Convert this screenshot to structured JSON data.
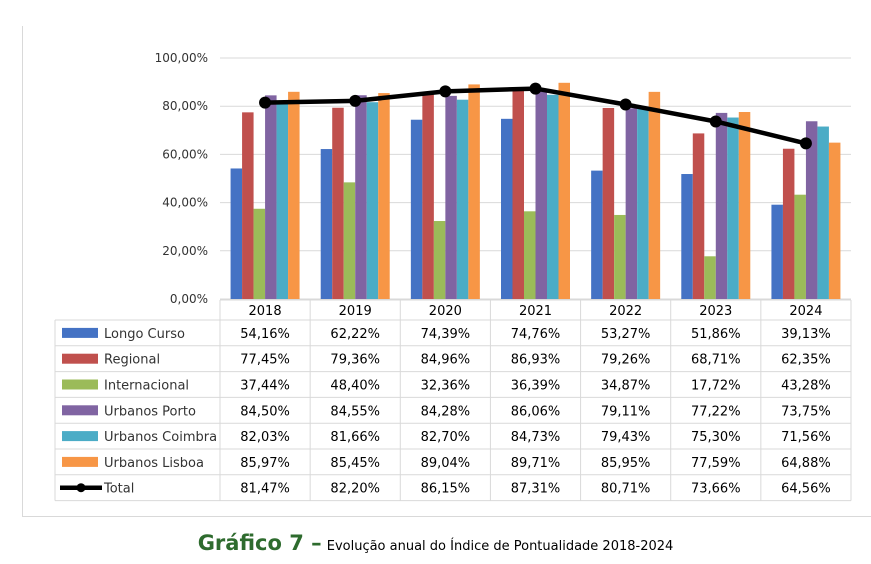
{
  "chart_data": {
    "type": "bar",
    "categories": [
      "2018",
      "2019",
      "2020",
      "2021",
      "2022",
      "2023",
      "2024"
    ],
    "ylim": [
      0,
      100
    ],
    "yticks": [
      "0,00%",
      "20,00%",
      "40,00%",
      "60,00%",
      "80,00%",
      "100,00%"
    ],
    "series": [
      {
        "name": "Longo Curso",
        "color": "#4472c4",
        "kind": "bar",
        "values": [
          54.16,
          62.22,
          74.39,
          74.76,
          53.27,
          51.86,
          39.13
        ],
        "labels": [
          "54,16%",
          "62,22%",
          "74,39%",
          "74,76%",
          "53,27%",
          "51,86%",
          "39,13%"
        ]
      },
      {
        "name": "Regional",
        "color": "#c0504d",
        "kind": "bar",
        "values": [
          77.45,
          79.36,
          84.96,
          86.93,
          79.26,
          68.71,
          62.35
        ],
        "labels": [
          "77,45%",
          "79,36%",
          "84,96%",
          "86,93%",
          "79,26%",
          "68,71%",
          "62,35%"
        ]
      },
      {
        "name": "Internacional",
        "color": "#9bbb59",
        "kind": "bar",
        "values": [
          37.44,
          48.4,
          32.36,
          36.39,
          34.87,
          17.72,
          43.28
        ],
        "labels": [
          "37,44%",
          "48,40%",
          "32,36%",
          "36,39%",
          "34,87%",
          "17,72%",
          "43,28%"
        ]
      },
      {
        "name": "Urbanos Porto",
        "color": "#8064a2",
        "kind": "bar",
        "values": [
          84.5,
          84.55,
          84.28,
          86.06,
          79.11,
          77.22,
          73.75
        ],
        "labels": [
          "84,50%",
          "84,55%",
          "84,28%",
          "86,06%",
          "79,11%",
          "77,22%",
          "73,75%"
        ]
      },
      {
        "name": "Urbanos Coimbra",
        "color": "#4bacc6",
        "kind": "bar",
        "values": [
          82.03,
          81.66,
          82.7,
          84.73,
          79.43,
          75.3,
          71.56
        ],
        "labels": [
          "82,03%",
          "81,66%",
          "82,70%",
          "84,73%",
          "79,43%",
          "75,30%",
          "71,56%"
        ]
      },
      {
        "name": "Urbanos Lisboa",
        "color": "#f79646",
        "kind": "bar",
        "values": [
          85.97,
          85.45,
          89.04,
          89.71,
          85.95,
          77.59,
          64.88
        ],
        "labels": [
          "85,97%",
          "85,45%",
          "89,04%",
          "89,71%",
          "85,95%",
          "77,59%",
          "64,88%"
        ]
      },
      {
        "name": "Total",
        "color": "#000000",
        "kind": "line",
        "values": [
          81.47,
          82.2,
          86.15,
          87.31,
          80.71,
          73.66,
          64.56
        ],
        "labels": [
          "81,47%",
          "82,20%",
          "86,15%",
          "87,31%",
          "80,71%",
          "73,66%",
          "64,56%"
        ]
      }
    ],
    "grid": true,
    "legend": "data-table"
  },
  "caption": {
    "number": "Gráfico 7 –",
    "text": "Evolução anual do Índice de Pontualidade 2018-2024"
  }
}
